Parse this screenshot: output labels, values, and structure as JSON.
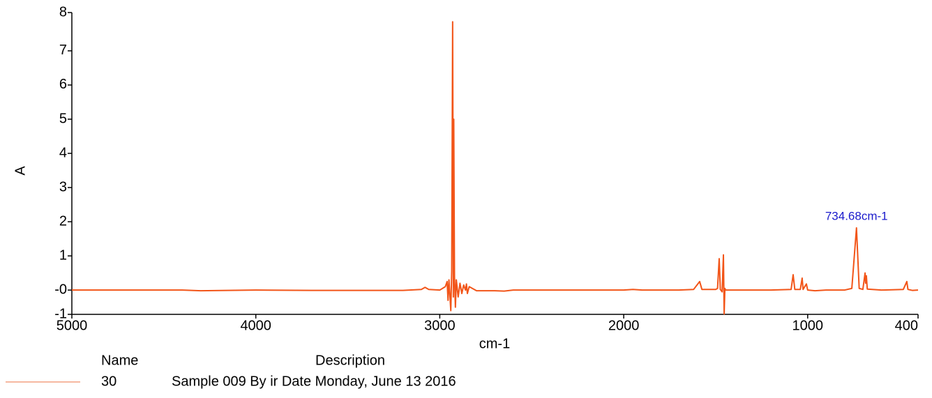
{
  "chart_data": {
    "type": "line",
    "xlabel": "cm-1",
    "ylabel": "A",
    "xlim": [
      5000,
      400
    ],
    "xticks": [
      5000,
      4000,
      3000,
      2000,
      1000,
      400
    ],
    "ylim": [
      -0.71,
      8.12
    ],
    "yticks": [
      {
        "value": -0.71,
        "label": "-1"
      },
      {
        "value": 0,
        "label": "-0"
      },
      1,
      2,
      3,
      4,
      5,
      6,
      7,
      {
        "value": 8.12,
        "label": "8"
      }
    ],
    "x": [
      5000,
      4400,
      4300,
      4000,
      3700,
      3500,
      3200,
      3100,
      3080,
      3060,
      3000,
      2970,
      2960,
      2955,
      2950,
      2940,
      2935,
      2930,
      2926,
      2924,
      2920,
      2915,
      2910,
      2900,
      2890,
      2880,
      2870,
      2860,
      2855,
      2850,
      2840,
      2800,
      2700,
      2650,
      2600,
      2000,
      1950,
      1900,
      1800,
      1700,
      1620,
      1587,
      1575,
      1500,
      1490,
      1481,
      1475,
      1465,
      1458,
      1454,
      1450,
      1446,
      1300,
      1200,
      1090,
      1079,
      1070,
      1040,
      1030,
      1025,
      1007,
      1000,
      960,
      900,
      800,
      760,
      734.68,
      720,
      700,
      688,
      685,
      681,
      676,
      600,
      480,
      461,
      455,
      430,
      400
    ],
    "series": [
      {
        "name": "30",
        "description": "Sample 009 By ir Date Monday, June 13 2016",
        "color": "#f25519",
        "legend_color": "#f4a080",
        "values": [
          0,
          0,
          -0.02,
          0,
          -0.01,
          -0.01,
          -0.01,
          0.02,
          0.08,
          0.02,
          0,
          0.1,
          0.25,
          -0.3,
          0.3,
          -0.6,
          0.55,
          7.85,
          -0.2,
          5.0,
          0.4,
          -0.5,
          0.3,
          -0.2,
          0.2,
          -0.1,
          0.15,
          0,
          0.18,
          -0.1,
          0.1,
          -0.02,
          -0.02,
          -0.03,
          0,
          0,
          0.02,
          0,
          0,
          0,
          0.02,
          0.25,
          0.02,
          0.02,
          0.05,
          0.92,
          0.02,
          -0.05,
          1.03,
          -0.7,
          0.05,
          0,
          0,
          0,
          0.02,
          0.45,
          0.02,
          0.02,
          0.35,
          0.02,
          0.18,
          0,
          -0.02,
          0,
          0,
          0.05,
          1.82,
          0.05,
          0.02,
          0.5,
          0.2,
          0.42,
          0.03,
          0,
          0.02,
          0.25,
          0.02,
          -0.01,
          0
        ]
      }
    ],
    "annotation": {
      "text": "734.68cm-1",
      "x": 734.68,
      "y": 1.82,
      "color": "#1a1acc"
    },
    "legend_headers": [
      "Name",
      "Description"
    ]
  }
}
